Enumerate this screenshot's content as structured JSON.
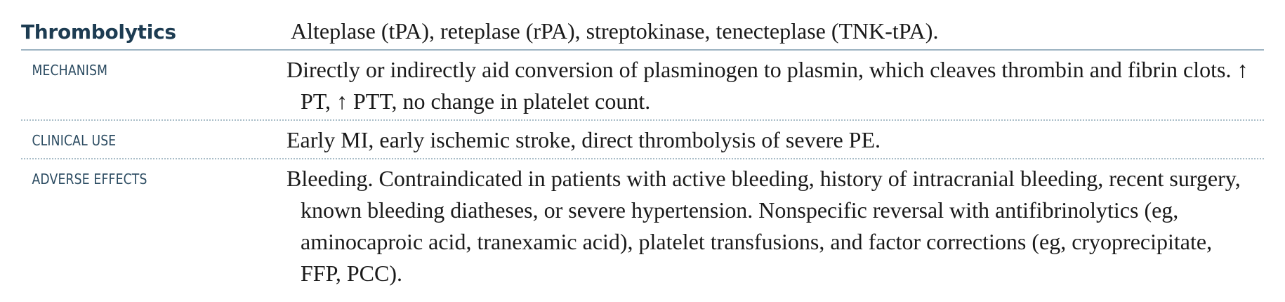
{
  "header": {
    "drug_class": "Thrombolytics",
    "drugs": "Alteplase (tPA), reteplase (rPA), streptokinase, tenecteplase (TNK-tPA)."
  },
  "rows": [
    {
      "label": "MECHANISM",
      "text": "Directly or indirectly aid conversion of plasminogen to plasmin, which cleaves thrombin and fibrin clots. ↑ PT, ↑ PTT, no change in platelet count."
    },
    {
      "label": "CLINICAL USE",
      "text": "Early MI, early ischemic stroke, direct thrombolysis of severe PE."
    },
    {
      "label": "ADVERSE EFFECTS",
      "text": "Bleeding. Contraindicated in patients with active bleeding, history of intracranial bleeding, recent surgery, known bleeding diatheses, or severe hypertension. Nonspecific reversal with antifibrinolytics (eg, aminocaproic acid, tranexamic acid), platelet transfusions, and factor corrections (eg, cryoprecipitate, FFP, PCC)."
    }
  ]
}
